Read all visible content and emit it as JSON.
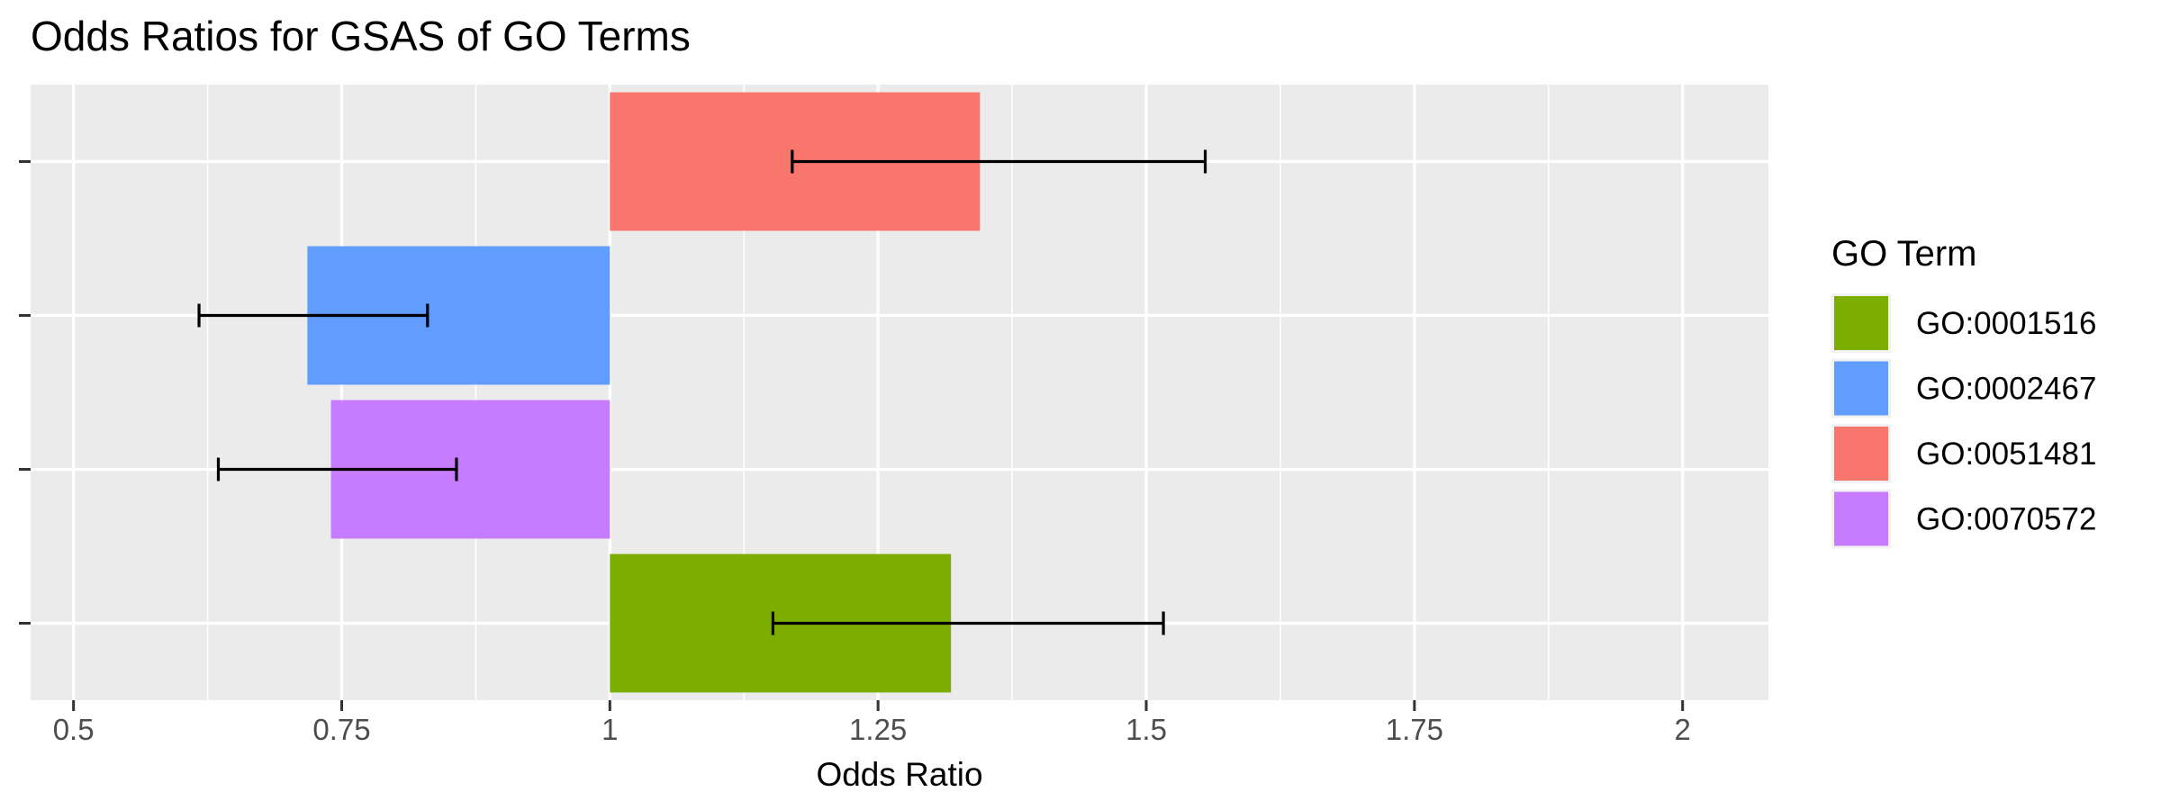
{
  "chart_data": {
    "type": "bar",
    "orientation": "horizontal",
    "title": "Odds Ratios for GSAS of GO Terms",
    "xlabel": "Odds Ratio",
    "ylabel": "",
    "baseline": 1,
    "xlim": [
      0.46,
      2.08
    ],
    "xticks": [
      0.5,
      0.75,
      1,
      1.25,
      1.5,
      1.75,
      2
    ],
    "xtick_labels": [
      "0.5",
      "0.75",
      "1",
      "1.25",
      "1.5",
      "1.75",
      "2"
    ],
    "categories": [
      "GO:0051481",
      "GO:0002467",
      "GO:0070572",
      "GO:0001516"
    ],
    "values": [
      1.345,
      0.718,
      0.74,
      1.318
    ],
    "error_low": [
      1.17,
      0.617,
      0.635,
      1.152
    ],
    "error_high": [
      1.555,
      0.83,
      0.857,
      1.516
    ],
    "grid": true,
    "legend": {
      "title": "GO Term",
      "position": "right",
      "entries": [
        {
          "label": "GO:0001516",
          "color": "#7CAE00"
        },
        {
          "label": "GO:0002467",
          "color": "#619CFF"
        },
        {
          "label": "GO:0051481",
          "color": "#F8766D"
        },
        {
          "label": "GO:0070572",
          "color": "#C77CFF"
        }
      ]
    },
    "colors": {
      "GO:0001516": "#7CAE00",
      "GO:0002467": "#619CFF",
      "GO:0051481": "#F8766D",
      "GO:0070572": "#C77CFF"
    },
    "panel_background": "#EBEBEB"
  }
}
